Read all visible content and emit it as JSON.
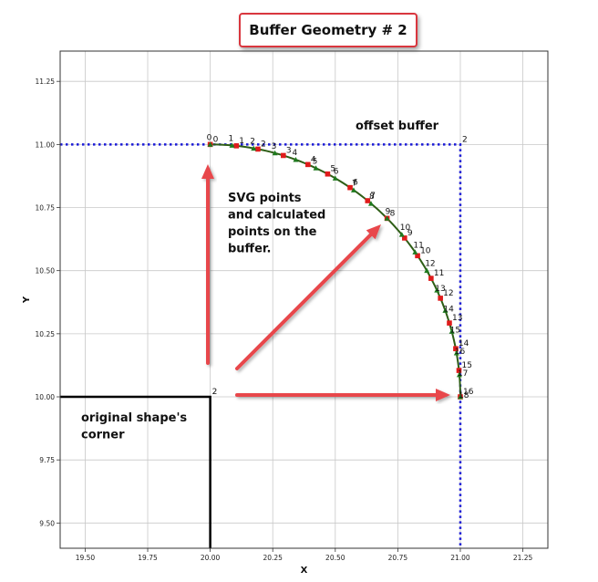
{
  "title": "Buffer Geometry # 2",
  "chart_data": {
    "type": "line",
    "xlabel": "X",
    "ylabel": "Y",
    "xlim": [
      19.4,
      21.35
    ],
    "ylim": [
      9.4,
      11.37
    ],
    "grid": true,
    "x_ticks": [
      "19.50",
      "19.75",
      "20.00",
      "20.25",
      "20.50",
      "20.75",
      "21.00",
      "21.25"
    ],
    "y_ticks": [
      "9.50",
      "9.75",
      "10.00",
      "10.25",
      "10.50",
      "10.75",
      "11.00",
      "11.25"
    ],
    "original_shape": {
      "color": "#000000",
      "points": [
        [
          19.4,
          10.0
        ],
        [
          20.0,
          10.0
        ],
        [
          20.0,
          9.4
        ]
      ],
      "corner_label": "2"
    },
    "offset_buffer": {
      "color": "#1a1ad6",
      "points": [
        [
          19.4,
          11.0
        ],
        [
          21.0,
          11.0
        ],
        [
          21.0,
          9.4
        ]
      ],
      "corner_label": "2"
    },
    "arc": {
      "color": "#2e5e16",
      "center": [
        20.0,
        10.0
      ],
      "radius": 1.0
    },
    "svg_points": {
      "marker": "triangle",
      "color": "#1e7a1e",
      "angles_deg": [
        90,
        85,
        80,
        75,
        70,
        65,
        60,
        55,
        50,
        45,
        40,
        35,
        30,
        25,
        20,
        15,
        10,
        5,
        0
      ],
      "labels": [
        "0",
        "1",
        "2",
        "3",
        "4",
        "5",
        "6",
        "7",
        "8",
        "9",
        "10",
        "11",
        "12",
        "13",
        "14",
        "15",
        "16",
        "17",
        "18"
      ]
    },
    "calculated_points": {
      "marker": "square",
      "color": "#e01b1b",
      "angles_deg": [
        90,
        84,
        79,
        73,
        67,
        62,
        56,
        51,
        45,
        39,
        34,
        28,
        23,
        17,
        11,
        6,
        0
      ],
      "labels": [
        "0",
        "1",
        "2",
        "3",
        "4",
        "5",
        "6",
        "7",
        "8",
        "9",
        "10",
        "11",
        "12",
        "13",
        "14",
        "15",
        "16"
      ]
    },
    "annotations": [
      {
        "id": "offset",
        "lines": [
          "offset buffer"
        ]
      },
      {
        "id": "svg",
        "lines": [
          "SVG points",
          "and calculated",
          "points on the",
          "buffer."
        ]
      },
      {
        "id": "orig",
        "lines": [
          "original shape's",
          "corner"
        ]
      }
    ],
    "arrow_color": "#e8474b"
  }
}
